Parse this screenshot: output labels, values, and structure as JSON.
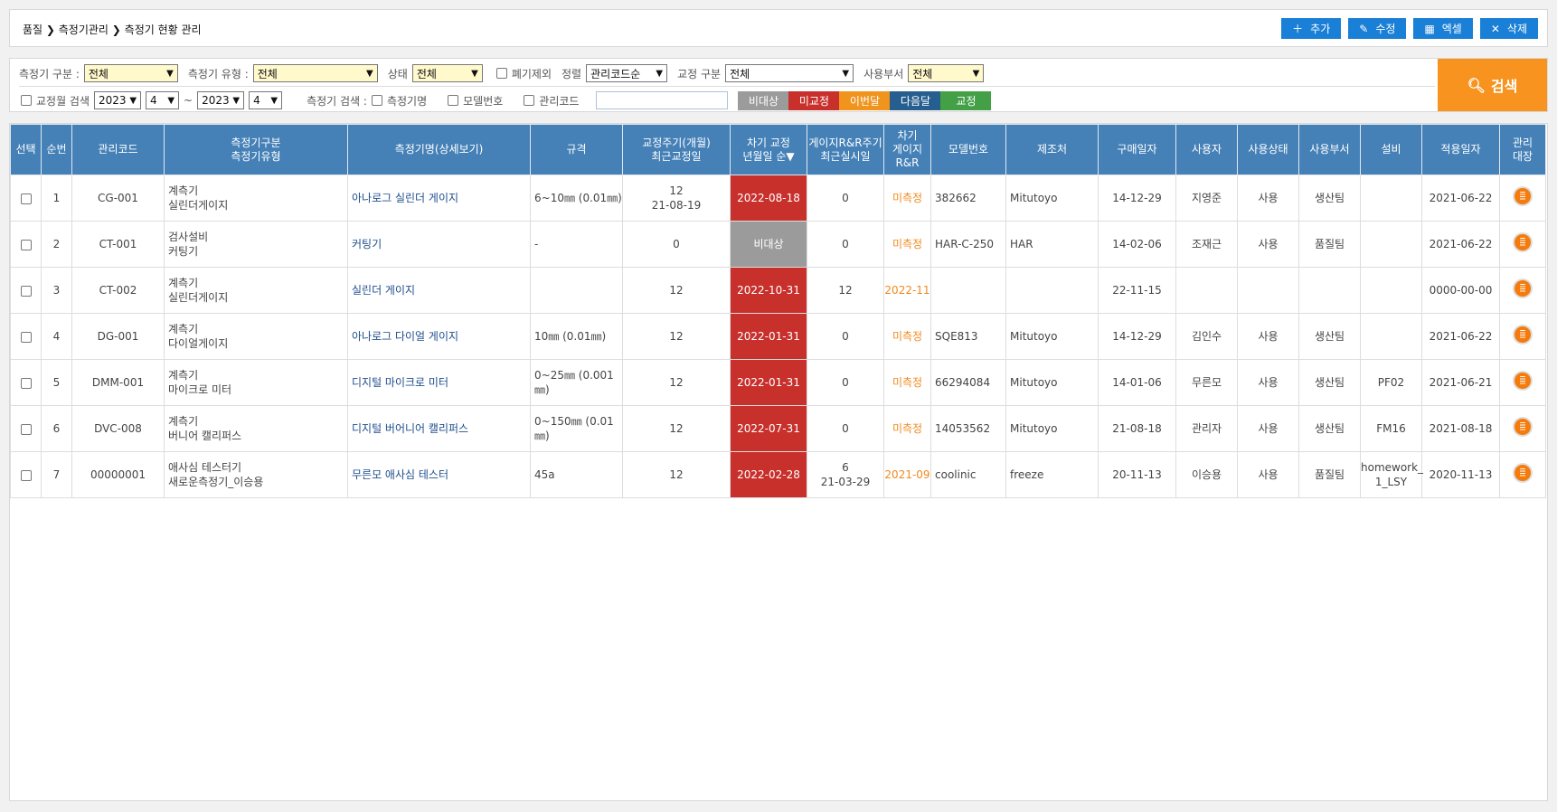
{
  "breadcrumb": "품질 ❯ 측정기관리 ❯ 측정기 현황 관리",
  "actions": [
    {
      "icon": "plus-icon",
      "glyph": "＋",
      "label": "추가"
    },
    {
      "icon": "pencil-icon",
      "glyph": "✎",
      "label": "수정"
    },
    {
      "icon": "excel-icon",
      "glyph": "▦",
      "label": "엑셀"
    },
    {
      "icon": "close-icon",
      "glyph": "✕",
      "label": "삭제"
    }
  ],
  "filters": {
    "type_label": "측정기 구분 :",
    "type_value": "전체",
    "kind_label": "측정기 유형 :",
    "kind_value": "전체",
    "status_label": "상태",
    "status_value": "전체",
    "exclude_label": "폐기제외",
    "sort_label": "정렬",
    "sort_value": "관리코드순",
    "calib_label": "교정 구분",
    "calib_value": "전체",
    "dept_label": "사용부서",
    "dept_value": "전체",
    "month_search_label": "교정월 검색",
    "from_year": "2023",
    "from_month": "4",
    "tilde": "~",
    "to_year": "2023",
    "to_month": "4",
    "device_search_label": "측정기 검색 :",
    "opt_name": "측정기명",
    "opt_model": "모델번호",
    "opt_code": "관리코드",
    "search_input": "",
    "search_button": "검색"
  },
  "legend": [
    {
      "label": "비대상",
      "color": "#9b9b9b"
    },
    {
      "label": "미교정",
      "color": "#c8302c"
    },
    {
      "label": "이번달",
      "color": "#f0941e"
    },
    {
      "label": "다음달",
      "color": "#265e8f"
    },
    {
      "label": "교정",
      "color": "#43a047"
    }
  ],
  "columns": [
    "선택",
    "순번",
    "관리코드",
    "측정기구분\n측정기유형",
    "측정기명(상세보기)",
    "규격",
    "교정주기(개월)\n최근교정일",
    "차기 교정\n년월일 순▼",
    "게이지R&R주기\n최근실시일",
    "차기\n게이지\nR&R",
    "모델번호",
    "제조처",
    "구매일자",
    "사용자",
    "사용상태",
    "사용부서",
    "설비",
    "적용일자",
    "관리\n대장"
  ],
  "rows": [
    {
      "no": "1",
      "code": "CG-001",
      "cat": "계측기\n실린더게이지",
      "name": "아나로그 실린더 게이지",
      "spec": "6~10㎜ (0.01㎜)",
      "cycle": "12\n21-08-19",
      "next": "2022-08-18",
      "next_status": "red",
      "rr": "0",
      "next_rr": "미측정",
      "model": "382662",
      "maker": "Mitutoyo",
      "buy": "14-12-29",
      "user": "지영준",
      "state": "사용",
      "dept": "생산팀",
      "equip": "",
      "apply": "2021-06-22"
    },
    {
      "no": "2",
      "code": "CT-001",
      "cat": "검사설비\n커팅기",
      "name": "커팅기",
      "spec": "-",
      "cycle": "0",
      "next": "비대상",
      "next_status": "gray",
      "rr": "0",
      "next_rr": "미측정",
      "model": "HAR-C-250",
      "maker": "HAR",
      "buy": "14-02-06",
      "user": "조재근",
      "state": "사용",
      "dept": "품질팀",
      "equip": "",
      "apply": "2021-06-22"
    },
    {
      "no": "3",
      "code": "CT-002",
      "cat": "계측기\n실린더게이지",
      "name": "실린더 게이지",
      "spec": "",
      "cycle": "12",
      "next": "2022-10-31",
      "next_status": "red",
      "rr": "12",
      "next_rr": "2022-11",
      "model": "",
      "maker": "",
      "buy": "22-11-15",
      "user": "",
      "state": "",
      "dept": "",
      "equip": "",
      "apply": "0000-00-00"
    },
    {
      "no": "4",
      "code": "DG-001",
      "cat": "계측기\n다이얼게이지",
      "name": "아나로그 다이얼 게이지",
      "spec": "10㎜ (0.01㎜)",
      "cycle": "12",
      "next": "2022-01-31",
      "next_status": "red",
      "rr": "0",
      "next_rr": "미측정",
      "model": "SQE813",
      "maker": "Mitutoyo",
      "buy": "14-12-29",
      "user": "김인수",
      "state": "사용",
      "dept": "생산팀",
      "equip": "",
      "apply": "2021-06-22"
    },
    {
      "no": "5",
      "code": "DMM-001",
      "cat": "계측기\n마이크로 미터",
      "name": "디지털 마이크로 미터",
      "spec": "0~25㎜ (0.001㎜)",
      "cycle": "12",
      "next": "2022-01-31",
      "next_status": "red",
      "rr": "0",
      "next_rr": "미측정",
      "model": "66294084",
      "maker": "Mitutoyo",
      "buy": "14-01-06",
      "user": "무른모",
      "state": "사용",
      "dept": "생산팀",
      "equip": "PF02",
      "apply": "2021-06-21"
    },
    {
      "no": "6",
      "code": "DVC-008",
      "cat": "계측기\n버니어 캘리퍼스",
      "name": "디지털 버어니어 캘리퍼스",
      "spec": "0~150㎜ (0.01㎜)",
      "cycle": "12",
      "next": "2022-07-31",
      "next_status": "red",
      "rr": "0",
      "next_rr": "미측정",
      "model": "14053562",
      "maker": "Mitutoyo",
      "buy": "21-08-18",
      "user": "관리자",
      "state": "사용",
      "dept": "생산팀",
      "equip": "FM16",
      "apply": "2021-08-18"
    },
    {
      "no": "7",
      "code": "00000001",
      "cat": "애사심 테스터기\n새로운측정기_이승용",
      "name": "무른모 애사심 테스터",
      "spec": "45a",
      "cycle": "12",
      "next": "2022-02-28",
      "next_status": "red",
      "rr": "6\n21-03-29",
      "next_rr": "2021-09",
      "model": "coolinic",
      "maker": "freeze",
      "buy": "20-11-13",
      "user": "이승용",
      "state": "사용",
      "dept": "품질팀",
      "equip": "homework_\n1_LSY",
      "apply": "2020-11-13"
    }
  ]
}
